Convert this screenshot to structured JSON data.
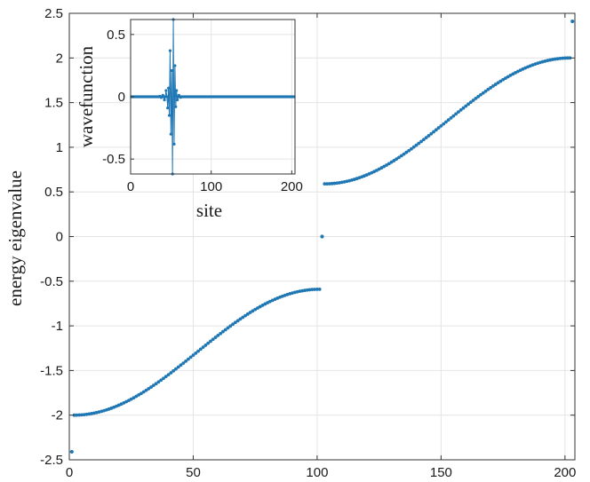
{
  "chart_data": [
    {
      "type": "scatter",
      "role": "main",
      "ylabel": "energy eigenvalue",
      "xlabel": "",
      "xlim": [
        0,
        204
      ],
      "ylim": [
        -2.5,
        2.5
      ],
      "xticks": [
        "0",
        "50",
        "100",
        "150",
        "200"
      ],
      "yticks": [
        "2.5",
        "2",
        "1.5",
        "1",
        "0.5",
        "0",
        "-0.5",
        "-1",
        "-1.5",
        "-2",
        "-2.5"
      ],
      "grid": true,
      "marker_color": "#1f77b4",
      "bands": [
        {
          "x_start": 2,
          "x_end": 101,
          "y_start": -2.0,
          "y_end": -0.59
        },
        {
          "x_start": 103,
          "x_end": 202,
          "y_start": 0.59,
          "y_end": 2.0
        }
      ],
      "isolated_points": [
        {
          "x": 1,
          "y": -2.41
        },
        {
          "x": 102,
          "y": 0.0
        },
        {
          "x": 203,
          "y": 2.41
        }
      ]
    },
    {
      "type": "line",
      "role": "inset",
      "xlabel": "site",
      "ylabel": "wavefunction",
      "xlim": [
        0,
        204
      ],
      "ylim": [
        -0.62,
        0.62
      ],
      "xticks": [
        "0",
        "100",
        "200"
      ],
      "yticks": [
        "0.5",
        "0",
        "-0.5"
      ],
      "grid": true,
      "marker_color": "#1f77b4",
      "nonzero_points": [
        {
          "x": 36,
          "y": 0.004
        },
        {
          "x": 38,
          "y": -0.006
        },
        {
          "x": 40,
          "y": 0.012
        },
        {
          "x": 42,
          "y": -0.025
        },
        {
          "x": 44,
          "y": 0.05
        },
        {
          "x": 46,
          "y": -0.09
        },
        {
          "x": 47,
          "y": 0.07
        },
        {
          "x": 48,
          "y": -0.15
        },
        {
          "x": 49,
          "y": 0.37
        },
        {
          "x": 50,
          "y": -0.3
        },
        {
          "x": 51,
          "y": 0.21
        },
        {
          "x": 52,
          "y": -0.62
        },
        {
          "x": 53,
          "y": 0.62
        },
        {
          "x": 54,
          "y": -0.38
        },
        {
          "x": 55,
          "y": 0.25
        },
        {
          "x": 56,
          "y": -0.08
        },
        {
          "x": 57,
          "y": 0.05
        },
        {
          "x": 58,
          "y": -0.025
        },
        {
          "x": 60,
          "y": 0.012
        },
        {
          "x": 62,
          "y": -0.005
        }
      ]
    }
  ]
}
